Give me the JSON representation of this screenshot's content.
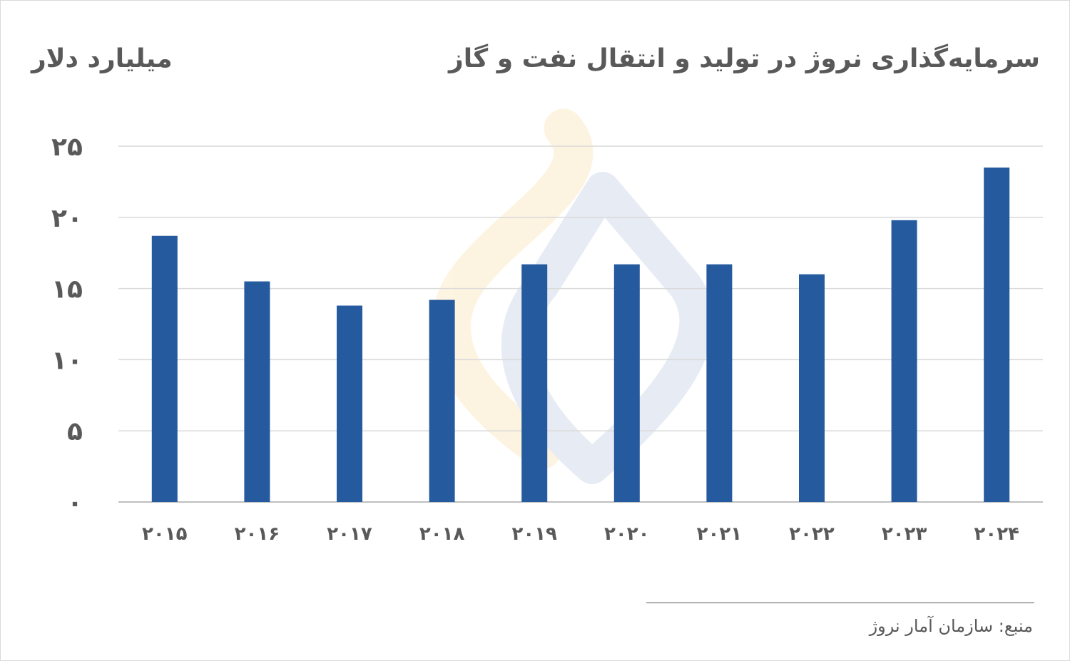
{
  "title": "سرمایه‌گذاری نروژ در تولید و انتقال نفت و گاز",
  "unit": "میلیارد دلار",
  "source": "منبع: سازمان آمار نروژ",
  "colors": {
    "bar": "#255A9E",
    "grid": "#d9d9d9",
    "text": "#595959",
    "watermark_orange": "#F8C35C",
    "watermark_blue": "#7E96C8"
  },
  "chart_data": {
    "type": "bar",
    "title": "سرمایه‌گذاری نروژ در تولید و انتقال نفت و گاز",
    "ylabel": "میلیارد دلار",
    "xlabel": "",
    "categories": [
      "۲۰۱۵",
      "۲۰۱۶",
      "۲۰۱۷",
      "۲۰۱۸",
      "۲۰۱۹",
      "۲۰۲۰",
      "۲۰۲۱",
      "۲۰۲۲",
      "۲۰۲۳",
      "۲۰۲۴"
    ],
    "values": [
      18.7,
      15.5,
      13.8,
      14.2,
      16.7,
      16.7,
      16.7,
      16.0,
      19.8,
      23.5
    ],
    "ylim": [
      0,
      25
    ],
    "yticks": [
      0,
      5,
      10,
      15,
      20,
      25
    ],
    "ytick_labels": [
      "۰",
      "۵",
      "۱۰",
      "۱۵",
      "۲۰",
      "۲۵"
    ],
    "grid": true,
    "legend": "none"
  }
}
